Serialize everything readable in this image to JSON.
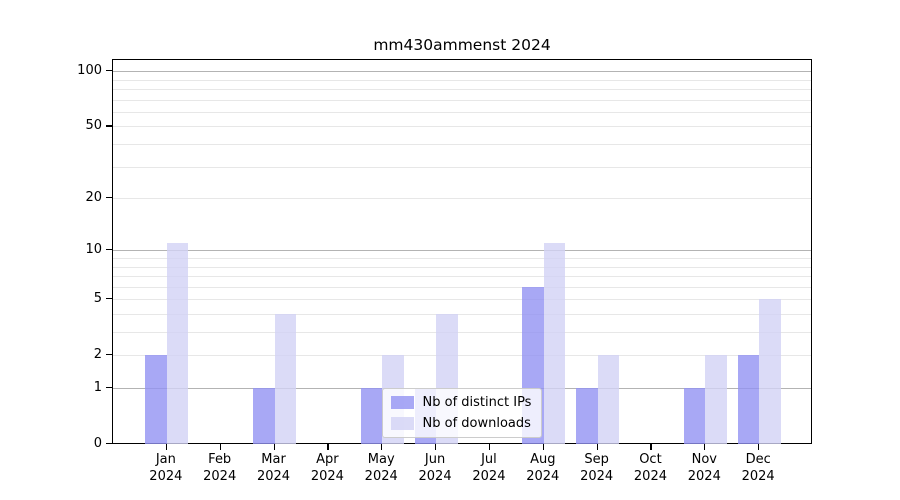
{
  "chart_data": {
    "type": "bar",
    "title": "mm430ammenst 2024",
    "categories": [
      "Jan",
      "Feb",
      "Mar",
      "Apr",
      "May",
      "Jun",
      "Jul",
      "Aug",
      "Sep",
      "Oct",
      "Nov",
      "Dec"
    ],
    "year_label": "2024",
    "series": [
      {
        "name": "Nb of distinct IPs",
        "color": "rgba(146,146,243,0.8)",
        "values": [
          2,
          0,
          1,
          0,
          1,
          1,
          0,
          6,
          1,
          0,
          1,
          2
        ]
      },
      {
        "name": "Nb of downloads",
        "color": "rgba(210,210,245,0.8)",
        "values": [
          11,
          0,
          4,
          0,
          2,
          4,
          0,
          11,
          2,
          0,
          2,
          5
        ]
      }
    ],
    "y_axis": {
      "scale": "log1p",
      "ticks": [
        0,
        1,
        2,
        5,
        10,
        20,
        50,
        100
      ],
      "major_grid_values": [
        1,
        10,
        100
      ],
      "minor_grid_values": [
        2,
        3,
        4,
        5,
        6,
        7,
        8,
        9,
        20,
        30,
        40,
        50,
        60,
        70,
        80,
        90
      ],
      "ylim": [
        0,
        115
      ]
    },
    "grid": "on",
    "legend_position": "lower center",
    "colors": {
      "grid_major": "#b3b3b3",
      "grid_minor": "#e7e7e7",
      "spine": "#000000",
      "text": "#000000",
      "legend_border": "#cccccc",
      "legend_bg": "rgba(255,255,255,0.8)"
    }
  }
}
